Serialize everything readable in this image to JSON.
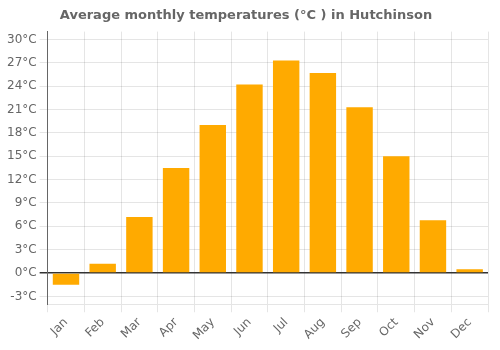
{
  "chart_data": {
    "type": "bar",
    "title": "Average monthly temperatures (°C ) in Hutchinson",
    "categories": [
      "Jan",
      "Feb",
      "Mar",
      "Apr",
      "May",
      "Jun",
      "Jul",
      "Aug",
      "Sep",
      "Oct",
      "Nov",
      "Dec"
    ],
    "values": [
      -1.5,
      1.2,
      7.2,
      13.5,
      19.0,
      24.2,
      27.3,
      25.7,
      21.3,
      15.0,
      6.8,
      0.5
    ],
    "color": "#FFAA00",
    "ylim": [
      -4,
      31
    ],
    "yticks": [
      {
        "value": -3,
        "label": "-3°C"
      },
      {
        "value": 0,
        "label": "0°C"
      },
      {
        "value": 3,
        "label": "3°C"
      },
      {
        "value": 6,
        "label": "6°C"
      },
      {
        "value": 9,
        "label": "9°C"
      },
      {
        "value": 12,
        "label": "12°C"
      },
      {
        "value": 15,
        "label": "15°C"
      },
      {
        "value": 18,
        "label": "18°C"
      },
      {
        "value": 21,
        "label": "21°C"
      },
      {
        "value": 24,
        "label": "24°C"
      },
      {
        "value": 27,
        "label": "27°C"
      },
      {
        "value": 30,
        "label": "30°C"
      }
    ],
    "grid": true
  }
}
